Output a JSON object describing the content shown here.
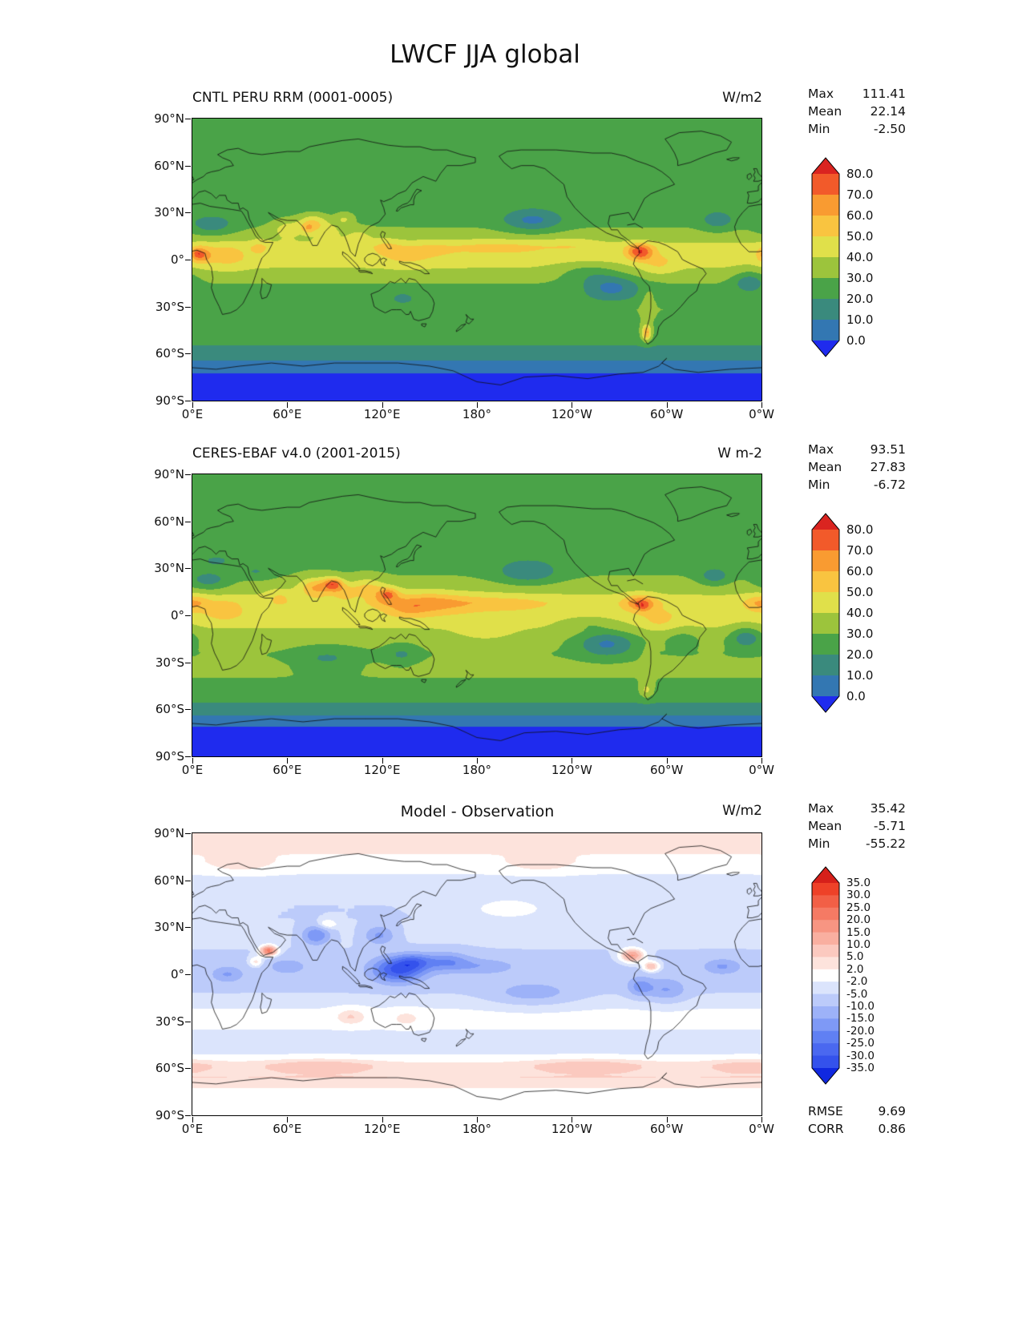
{
  "figure": {
    "title": "LWCF JJA global"
  },
  "labels": {
    "max": "Max",
    "mean": "Mean",
    "min": "Min",
    "rmse": "RMSE",
    "corr": "CORR"
  },
  "axes": {
    "lon_ticks": [
      "0°E",
      "60°E",
      "120°E",
      "180°",
      "120°W",
      "60°W",
      "0°W"
    ],
    "lat_ticks": [
      "90°N",
      "60°N",
      "30°N",
      "0°",
      "30°S",
      "60°S",
      "90°S"
    ]
  },
  "panels": [
    {
      "title": "CNTL PERU RRM (0001-0005)",
      "units": "W/m2",
      "stats": {
        "max": "111.41",
        "mean": "22.14",
        "min": "-2.50"
      }
    },
    {
      "title": "CERES-EBAF v4.0 (2001-2015)",
      "units": "W m-2",
      "stats": {
        "max": "93.51",
        "mean": "27.83",
        "min": "-6.72"
      }
    },
    {
      "title": "Model - Observation",
      "units": "W/m2",
      "stats": {
        "max": "35.42",
        "mean": "-5.71",
        "min": "-55.22"
      },
      "rmse": "9.69",
      "corr": "0.86"
    }
  ],
  "chart_data": [
    {
      "type": "heatmap",
      "title": "CNTL PERU RRM (0001-0005)",
      "units": "W/m2",
      "stats": {
        "max": 111.41,
        "mean": 22.14,
        "min": -2.5
      },
      "lon_range": [
        0,
        360
      ],
      "lat_range": [
        -90,
        90
      ],
      "levels": [
        0,
        10,
        20,
        30,
        40,
        50,
        60,
        70,
        80
      ],
      "colors": [
        "#1f2bee",
        "#3377b2",
        "#3a8a7d",
        "#4aa348",
        "#9cc43c",
        "#e0e04a",
        "#f9c440",
        "#f99b31",
        "#f25a2a",
        "#da2420"
      ],
      "colorbar_labels": [
        "80.0",
        "70.0",
        "60.0",
        "50.0",
        "40.0",
        "30.0",
        "20.0",
        "10.0",
        "0.0"
      ],
      "field_model": {
        "base": [
          [
            -90,
            -6
          ],
          [
            -75,
            -3
          ],
          [
            -68,
            6
          ],
          [
            -60,
            16
          ],
          [
            -50,
            24
          ],
          [
            -40,
            28
          ],
          [
            -32,
            30
          ],
          [
            -25,
            27
          ],
          [
            -15,
            30
          ],
          [
            -8,
            38
          ],
          [
            0,
            44
          ],
          [
            8,
            44
          ],
          [
            15,
            34
          ],
          [
            25,
            27
          ],
          [
            35,
            26
          ],
          [
            45,
            28
          ],
          [
            55,
            27
          ],
          [
            65,
            25
          ],
          [
            75,
            23
          ],
          [
            90,
            21
          ]
        ],
        "blobs": [
          [
            5,
            3,
            26,
            7,
            5
          ],
          [
            3,
            4,
            14,
            3,
            2.5
          ],
          [
            22,
            2,
            12,
            12,
            7
          ],
          [
            42,
            8,
            10,
            6,
            5
          ],
          [
            12,
            22,
            -15,
            14,
            6
          ],
          [
            60,
            20,
            14,
            10,
            6
          ],
          [
            76,
            24,
            22,
            9,
            5
          ],
          [
            73,
            20,
            18,
            4,
            3
          ],
          [
            85,
            18,
            12,
            10,
            6
          ],
          [
            96,
            26,
            14,
            6,
            4
          ],
          [
            105,
            15,
            10,
            8,
            5
          ],
          [
            122,
            8,
            10,
            10,
            6
          ],
          [
            135,
            2,
            8,
            12,
            6
          ],
          [
            150,
            6,
            8,
            16,
            6
          ],
          [
            178,
            8,
            6,
            22,
            5
          ],
          [
            205,
            8,
            8,
            26,
            5
          ],
          [
            240,
            10,
            6,
            16,
            5
          ],
          [
            283,
            5,
            38,
            8,
            5
          ],
          [
            295,
            -3,
            10,
            10,
            6
          ],
          [
            288,
            -28,
            10,
            4,
            10
          ],
          [
            287,
            -47,
            40,
            3,
            5
          ],
          [
            265,
            -18,
            -22,
            18,
            8
          ],
          [
            352,
            -14,
            -18,
            10,
            7
          ],
          [
            85,
            -28,
            -8,
            20,
            7
          ],
          [
            215,
            25,
            -20,
            18,
            7
          ],
          [
            332,
            25,
            -14,
            10,
            6
          ],
          [
            133,
            -25,
            -10,
            10,
            6
          ],
          [
            250,
            -8,
            -12,
            20,
            6
          ]
        ]
      }
    },
    {
      "type": "heatmap",
      "title": "CERES-EBAF v4.0 (2001-2015)",
      "units": "W m-2",
      "stats": {
        "max": 93.51,
        "mean": 27.83,
        "min": -6.72
      },
      "lon_range": [
        0,
        360
      ],
      "lat_range": [
        -90,
        90
      ],
      "levels": [
        0,
        10,
        20,
        30,
        40,
        50,
        60,
        70,
        80
      ],
      "colors": [
        "#1f2bee",
        "#3377b2",
        "#3a8a7d",
        "#4aa348",
        "#9cc43c",
        "#e0e04a",
        "#f9c440",
        "#f99b31",
        "#f25a2a",
        "#da2420"
      ],
      "colorbar_labels": [
        "80.0",
        "70.0",
        "60.0",
        "50.0",
        "40.0",
        "30.0",
        "20.0",
        "10.0",
        "0.0"
      ],
      "field_model": {
        "base": [
          [
            -90,
            -8
          ],
          [
            -75,
            -4
          ],
          [
            -68,
            4
          ],
          [
            -60,
            16
          ],
          [
            -50,
            26
          ],
          [
            -40,
            30
          ],
          [
            -32,
            32
          ],
          [
            -25,
            30
          ],
          [
            -15,
            33
          ],
          [
            -8,
            40
          ],
          [
            0,
            46
          ],
          [
            8,
            46
          ],
          [
            15,
            38
          ],
          [
            25,
            30
          ],
          [
            35,
            28
          ],
          [
            45,
            30
          ],
          [
            55,
            29
          ],
          [
            65,
            27
          ],
          [
            75,
            25
          ],
          [
            90,
            23
          ]
        ],
        "blobs": [
          [
            0,
            8,
            18,
            10,
            5
          ],
          [
            20,
            3,
            14,
            10,
            6
          ],
          [
            10,
            22,
            -16,
            14,
            6
          ],
          [
            40,
            28,
            -10,
            10,
            5
          ],
          [
            15,
            35,
            -10,
            12,
            5
          ],
          [
            55,
            12,
            10,
            8,
            5
          ],
          [
            78,
            18,
            26,
            10,
            6
          ],
          [
            89,
            20,
            38,
            6,
            4
          ],
          [
            96,
            15,
            14,
            8,
            5
          ],
          [
            110,
            18,
            16,
            10,
            6
          ],
          [
            122,
            12,
            20,
            10,
            6
          ],
          [
            124,
            14,
            16,
            5,
            3
          ],
          [
            135,
            5,
            14,
            12,
            6
          ],
          [
            148,
            8,
            16,
            15,
            7
          ],
          [
            166,
            8,
            10,
            18,
            6
          ],
          [
            196,
            8,
            10,
            30,
            5
          ],
          [
            185,
            -12,
            8,
            20,
            6
          ],
          [
            283,
            8,
            26,
            10,
            5
          ],
          [
            285,
            6,
            14,
            4,
            3
          ],
          [
            295,
            -3,
            10,
            10,
            6
          ],
          [
            288,
            -30,
            8,
            4,
            10
          ],
          [
            287,
            -48,
            16,
            4,
            5
          ],
          [
            262,
            -18,
            -24,
            18,
            8
          ],
          [
            350,
            -14,
            -20,
            10,
            7
          ],
          [
            85,
            -28,
            -12,
            20,
            7
          ],
          [
            212,
            28,
            -18,
            20,
            8
          ],
          [
            330,
            25,
            -16,
            10,
            6
          ],
          [
            132,
            -25,
            -12,
            10,
            6
          ],
          [
            250,
            -5,
            -10,
            18,
            5
          ],
          [
            310,
            -15,
            -8,
            10,
            6
          ]
        ]
      }
    },
    {
      "type": "heatmap",
      "title": "Model - Observation",
      "units": "W/m2",
      "stats": {
        "max": 35.42,
        "mean": -5.71,
        "min": -55.22
      },
      "rmse": 9.69,
      "corr": 0.86,
      "lon_range": [
        0,
        360
      ],
      "lat_range": [
        -90,
        90
      ],
      "levels": [
        -35,
        -30,
        -25,
        -20,
        -15,
        -10,
        -5,
        -2,
        2,
        5,
        10,
        15,
        20,
        25,
        30,
        35
      ],
      "colors": [
        "#1028e0",
        "#3452ec",
        "#4a68f0",
        "#6080f3",
        "#7e99f6",
        "#9db2f8",
        "#bccbfa",
        "#dbe4fc",
        "#ffffff",
        "#fde3dc",
        "#fbc9bf",
        "#f9afa0",
        "#f79582",
        "#f57a64",
        "#f25f46",
        "#ee4128",
        "#d6201a"
      ],
      "colorbar_labels": [
        "35.0",
        "30.0",
        "25.0",
        "20.0",
        "15.0",
        "10.0",
        "5.0",
        "2.0",
        "-2.0",
        "-5.0",
        "-10.0",
        "-15.0",
        "-20.0",
        "-25.0",
        "-30.0",
        "-35.0"
      ],
      "field_model": {
        "base": [
          [
            -90,
            -1
          ],
          [
            -75,
            1
          ],
          [
            -66,
            5
          ],
          [
            -58,
            3
          ],
          [
            -50,
            -3
          ],
          [
            -42,
            -4
          ],
          [
            -32,
            -1
          ],
          [
            -22,
            -2
          ],
          [
            -12,
            -5
          ],
          [
            -4,
            -6
          ],
          [
            6,
            -6
          ],
          [
            16,
            -5
          ],
          [
            26,
            -4
          ],
          [
            36,
            -5
          ],
          [
            46,
            -5
          ],
          [
            56,
            -4
          ],
          [
            64,
            -2
          ],
          [
            72,
            1
          ],
          [
            82,
            3
          ],
          [
            90,
            2
          ]
        ],
        "blobs": [
          [
            130,
            3,
            -26,
            16,
            8
          ],
          [
            140,
            8,
            -12,
            10,
            5
          ],
          [
            118,
            25,
            -12,
            10,
            6
          ],
          [
            78,
            25,
            -16,
            9,
            6
          ],
          [
            60,
            5,
            -8,
            12,
            5
          ],
          [
            48,
            15,
            30,
            5,
            3
          ],
          [
            40,
            8,
            10,
            4,
            3
          ],
          [
            22,
            0,
            -10,
            10,
            5
          ],
          [
            335,
            5,
            -10,
            12,
            5
          ],
          [
            283,
            -8,
            -12,
            8,
            6
          ],
          [
            278,
            12,
            22,
            7,
            4
          ],
          [
            290,
            5,
            16,
            5,
            3
          ],
          [
            300,
            -10,
            -10,
            12,
            7
          ],
          [
            160,
            8,
            -14,
            15,
            6
          ],
          [
            185,
            5,
            -8,
            20,
            5
          ],
          [
            215,
            -12,
            -8,
            25,
            7
          ],
          [
            200,
            42,
            5,
            25,
            7
          ],
          [
            100,
            -27,
            7,
            10,
            5
          ],
          [
            135,
            -28,
            5,
            10,
            5
          ],
          [
            80,
            -58,
            5,
            35,
            4
          ],
          [
            250,
            -58,
            5,
            35,
            4
          ],
          [
            350,
            -58,
            4,
            25,
            4
          ],
          [
            85,
            32,
            8,
            6,
            3
          ],
          [
            30,
            70,
            4,
            20,
            5
          ],
          [
            220,
            70,
            4,
            20,
            5
          ]
        ]
      }
    }
  ]
}
